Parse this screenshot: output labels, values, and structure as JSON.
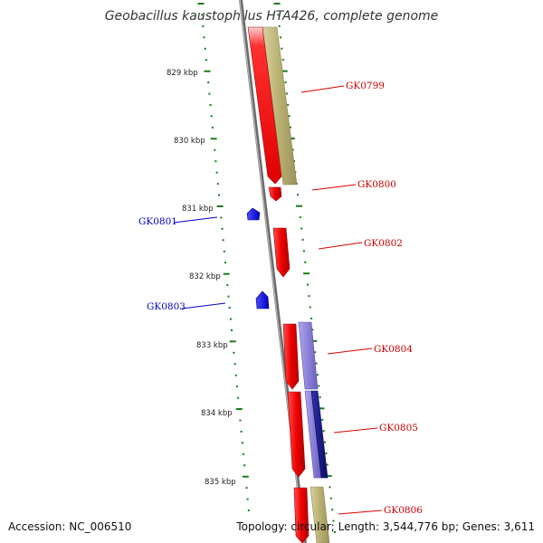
{
  "title": "Geobacillus kaustophilus HTA426, complete genome",
  "accession": "Accession: NC_006510",
  "topology": "Topology: circular; Length: 3,544,776 bp; Genes: 3,611",
  "colors": {
    "backbone": "#7a7a7a",
    "ruler": "#1a7a1a",
    "forward_gene": "#ee0000",
    "reverse_gene": "#1010ee",
    "band_olive": "#b8b070",
    "band_lavender": "#8a80d8",
    "band_navy": "#1a1a8a"
  },
  "ruler": {
    "ticks": [
      "829 kbp",
      "830 kbp",
      "831 kbp",
      "832 kbp",
      "833 kbp",
      "834 kbp",
      "835 kbp"
    ]
  },
  "genes": [
    {
      "id": "gk0799",
      "label": "GK0799",
      "strand": "forward",
      "color": "red"
    },
    {
      "id": "gk0800",
      "label": "GK0800",
      "strand": "forward",
      "color": "red"
    },
    {
      "id": "gk0801",
      "label": "GK0801",
      "strand": "reverse",
      "color": "blue"
    },
    {
      "id": "gk0802",
      "label": "GK0802",
      "strand": "forward",
      "color": "red"
    },
    {
      "id": "gk0803",
      "label": "GK0803",
      "strand": "reverse",
      "color": "blue"
    },
    {
      "id": "gk0804",
      "label": "GK0804",
      "strand": "forward",
      "color": "red"
    },
    {
      "id": "gk0805",
      "label": "GK0805",
      "strand": "forward",
      "color": "red"
    },
    {
      "id": "gk0806",
      "label": "GK0806",
      "strand": "forward",
      "color": "red"
    }
  ]
}
